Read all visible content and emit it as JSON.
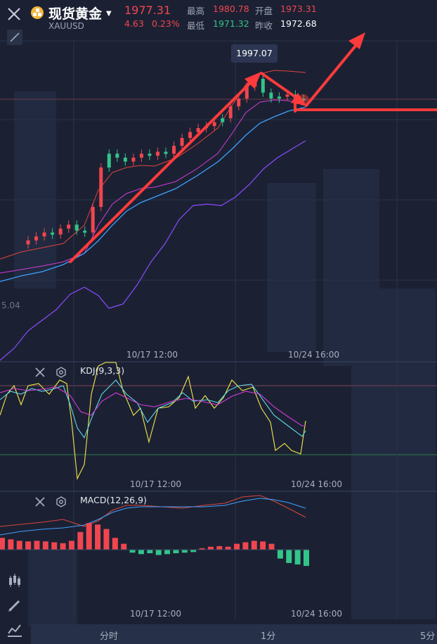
{
  "header": {
    "title": "现货黄金",
    "symbol": "XAUUSD",
    "price": "1977.31",
    "change": "4.63",
    "change_pct": "0.23%",
    "high_label": "最高",
    "high_value": "1980.78",
    "open_label": "开盘",
    "open_value": "1973.31",
    "low_label": "最低",
    "low_value": "1971.32",
    "prev_close_label": "昨收",
    "prev_close_value": "1972.68"
  },
  "main_chart": {
    "tooltip_value": "1997.07",
    "left_edge_value": "5.04",
    "x_labels": [
      "10/17 12:00",
      "10/24 16:00"
    ]
  },
  "kdj_panel": {
    "title": "KDJ(9,3,3)",
    "x_labels": [
      "10/17 12:00",
      "10/24 16:00"
    ]
  },
  "macd_panel": {
    "title": "MACD(12,26,9)",
    "x_labels": [
      "10/17 12:00",
      "10/24 16:00"
    ]
  },
  "bottom_tabs": [
    "分时",
    "1分",
    "5分"
  ],
  "colors": {
    "background": "#1b2133",
    "up": "#f0464f",
    "down": "#33c48a",
    "annotation": "#ff3b3b"
  },
  "chart_data": {
    "type": "candlestick",
    "annotation": "1997.07",
    "candles_normalized_close_trend": [
      0.18,
      0.2,
      0.22,
      0.21,
      0.24,
      0.26,
      0.23,
      0.22,
      0.35,
      0.55,
      0.62,
      0.6,
      0.58,
      0.6,
      0.62,
      0.61,
      0.63,
      0.62,
      0.66,
      0.7,
      0.73,
      0.75,
      0.76,
      0.78,
      0.8,
      0.86,
      0.9,
      0.96,
      1.0,
      0.93,
      0.9,
      0.91,
      0.92,
      0.9,
      0.89
    ],
    "macd_histogram": [
      0.4,
      0.35,
      0.3,
      0.28,
      0.3,
      0.28,
      0.25,
      0.22,
      0.3,
      0.6,
      0.9,
      0.85,
      0.7,
      0.4,
      0.2,
      -0.1,
      -0.15,
      -0.12,
      -0.18,
      -0.15,
      -0.12,
      -0.1,
      -0.08,
      0.05,
      0.1,
      0.12,
      0.1,
      0.2,
      0.25,
      0.3,
      0.28,
      0.2,
      -0.3,
      -0.45,
      -0.5,
      -0.55
    ]
  }
}
